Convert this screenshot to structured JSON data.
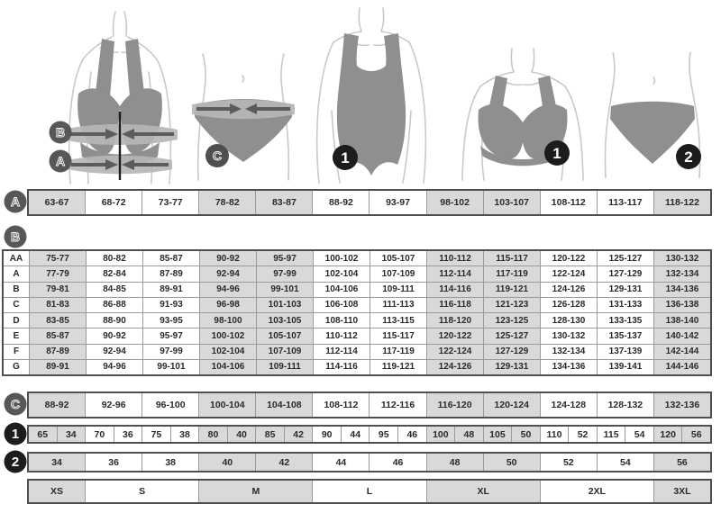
{
  "colors": {
    "cell_shaded": "#d9d9d9",
    "cell_white": "#ffffff",
    "grid_line": "#9a9a9a",
    "outer_border": "#4f4f4f",
    "letter_circle": "#575757",
    "number_circle": "#1c1c1c",
    "garment_gray": "#8f8f8f",
    "band_light": "#b6b6b6",
    "band_dark": "#5c5c5c",
    "body_line": "#c9c9c9"
  },
  "figures": {
    "bra_measure": {
      "labels": [
        "B",
        "A"
      ]
    },
    "panty_measure": {
      "labels": [
        "C"
      ]
    },
    "bodysuit": {
      "labels": [
        "1"
      ]
    },
    "bra": {
      "labels": [
        "1"
      ]
    },
    "panty": {
      "labels": [
        "2"
      ]
    }
  },
  "row_icons": {
    "a": "A",
    "b": "B",
    "c": "C",
    "n1": "1",
    "n2": "2"
  },
  "shaded_columns": [
    true,
    false,
    false,
    true,
    true,
    false,
    false,
    true,
    true,
    false,
    false,
    true
  ],
  "row_a": {
    "cells": [
      "63-67",
      "68-72",
      "73-77",
      "78-82",
      "83-87",
      "88-92",
      "93-97",
      "98-102",
      "103-107",
      "108-112",
      "113-117",
      "118-122"
    ]
  },
  "table_b": {
    "rows": [
      {
        "label": "AA",
        "cells": [
          "75-77",
          "80-82",
          "85-87",
          "90-92",
          "95-97",
          "100-102",
          "105-107",
          "110-112",
          "115-117",
          "120-122",
          "125-127",
          "130-132"
        ]
      },
      {
        "label": "A",
        "cells": [
          "77-79",
          "82-84",
          "87-89",
          "92-94",
          "97-99",
          "102-104",
          "107-109",
          "112-114",
          "117-119",
          "122-124",
          "127-129",
          "132-134"
        ]
      },
      {
        "label": "B",
        "cells": [
          "79-81",
          "84-85",
          "89-91",
          "94-96",
          "99-101",
          "104-106",
          "109-111",
          "114-116",
          "119-121",
          "124-126",
          "129-131",
          "134-136"
        ]
      },
      {
        "label": "C",
        "cells": [
          "81-83",
          "86-88",
          "91-93",
          "96-98",
          "101-103",
          "106-108",
          "111-113",
          "116-118",
          "121-123",
          "126-128",
          "131-133",
          "136-138"
        ]
      },
      {
        "label": "D",
        "cells": [
          "83-85",
          "88-90",
          "93-95",
          "98-100",
          "103-105",
          "108-110",
          "113-115",
          "118-120",
          "123-125",
          "128-130",
          "133-135",
          "138-140"
        ]
      },
      {
        "label": "E",
        "cells": [
          "85-87",
          "90-92",
          "95-97",
          "100-102",
          "105-107",
          "110-112",
          "115-117",
          "120-122",
          "125-127",
          "130-132",
          "135-137",
          "140-142"
        ]
      },
      {
        "label": "F",
        "cells": [
          "87-89",
          "92-94",
          "97-99",
          "102-104",
          "107-109",
          "112-114",
          "117-119",
          "122-124",
          "127-129",
          "132-134",
          "137-139",
          "142-144"
        ]
      },
      {
        "label": "G",
        "cells": [
          "89-91",
          "94-96",
          "99-101",
          "104-106",
          "109-111",
          "114-116",
          "119-121",
          "124-126",
          "129-131",
          "134-136",
          "139-141",
          "144-146"
        ]
      }
    ]
  },
  "row_c": {
    "cells": [
      "88-92",
      "92-96",
      "96-100",
      "100-104",
      "104-108",
      "108-112",
      "112-116",
      "116-120",
      "120-124",
      "124-128",
      "128-132",
      "132-136"
    ]
  },
  "row_1": {
    "cells": [
      "65",
      "34",
      "70",
      "36",
      "75",
      "38",
      "80",
      "40",
      "85",
      "42",
      "90",
      "44",
      "95",
      "46",
      "100",
      "48",
      "105",
      "50",
      "110",
      "52",
      "115",
      "54",
      "120",
      "56"
    ]
  },
  "row_2": {
    "cells": [
      "34",
      "36",
      "38",
      "40",
      "42",
      "44",
      "46",
      "48",
      "50",
      "52",
      "54",
      "56"
    ]
  },
  "sizes_row": {
    "cells": [
      {
        "label": "XS",
        "span": 1,
        "shaded": true
      },
      {
        "label": "S",
        "span": 2,
        "shaded": false
      },
      {
        "label": "M",
        "span": 2,
        "shaded": true
      },
      {
        "label": "L",
        "span": 2,
        "shaded": false
      },
      {
        "label": "XL",
        "span": 2,
        "shaded": true
      },
      {
        "label": "2XL",
        "span": 2,
        "shaded": false
      },
      {
        "label": "3XL",
        "span": 1,
        "shaded": true
      }
    ]
  }
}
